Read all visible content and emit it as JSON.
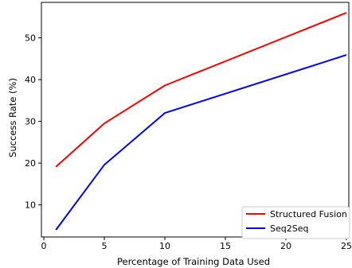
{
  "chart_data": {
    "type": "line",
    "title": "",
    "xlabel": "Percentage of Training Data Used",
    "ylabel": "Success Rate (%)",
    "xlim": [
      -0.2,
      25.2
    ],
    "ylim": [
      2.3,
      58.5
    ],
    "xticks": [
      0,
      5,
      10,
      15,
      20,
      25
    ],
    "xtick_labels": [
      "0",
      "5",
      "10",
      "15",
      "20",
      "25"
    ],
    "yticks": [
      10,
      20,
      30,
      40,
      50
    ],
    "ytick_labels": [
      "10",
      "20",
      "30",
      "40",
      "50"
    ],
    "grid": false,
    "legend_position": "lower-right",
    "x": [
      1,
      5,
      10,
      25
    ],
    "series": [
      {
        "name": "Structured Fusion",
        "color": "#ff0000",
        "values": [
          19.1,
          29.5,
          38.6,
          56.0
        ]
      },
      {
        "name": "Seq2Seq",
        "color": "#0000ff",
        "values": [
          4.0,
          19.6,
          32.0,
          45.9
        ]
      }
    ]
  }
}
